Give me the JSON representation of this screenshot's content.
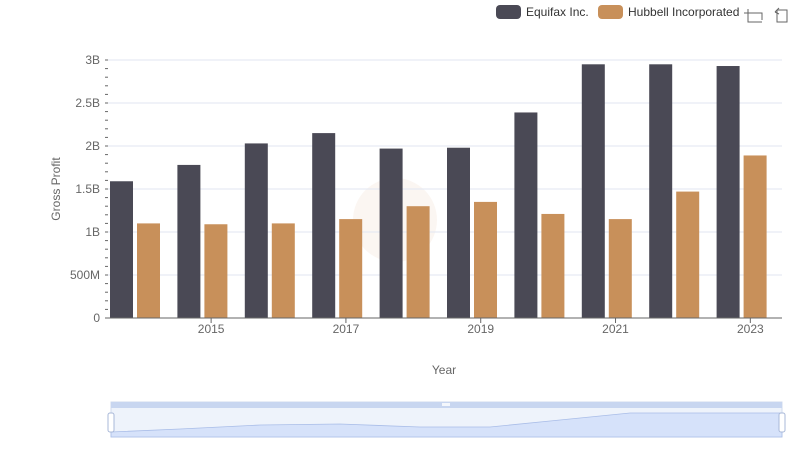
{
  "toolbar": {
    "zoom_icon": "zoom-select-icon",
    "reset_icon": "zoom-reset-icon"
  },
  "chart_data": {
    "type": "bar",
    "x": [
      2014,
      2015,
      2016,
      2017,
      2018,
      2019,
      2020,
      2021,
      2022,
      2023
    ],
    "x_tick_labels": [
      "2015",
      "2017",
      "2019",
      "2021",
      "2023"
    ],
    "xlabel": "Year",
    "ylabel": "Gross Profit",
    "ylim": [
      0,
      3000000000
    ],
    "y_tick_labels": [
      "0",
      "500M",
      "1B",
      "1.5B",
      "2B",
      "2.5B",
      "3B"
    ],
    "grid": true,
    "legend_position": "top-right",
    "series": [
      {
        "name": "Equifax Inc.",
        "color": "#4a4955",
        "values": [
          1590000000,
          1780000000,
          2030000000,
          2150000000,
          1970000000,
          1980000000,
          2390000000,
          2950000000,
          2950000000,
          2930000000
        ]
      },
      {
        "name": "Hubbell Incorporated",
        "color": "#c8905a",
        "values": [
          1100000000,
          1090000000,
          1100000000,
          1150000000,
          1300000000,
          1350000000,
          1210000000,
          1150000000,
          1470000000,
          1890000000
        ]
      }
    ]
  }
}
